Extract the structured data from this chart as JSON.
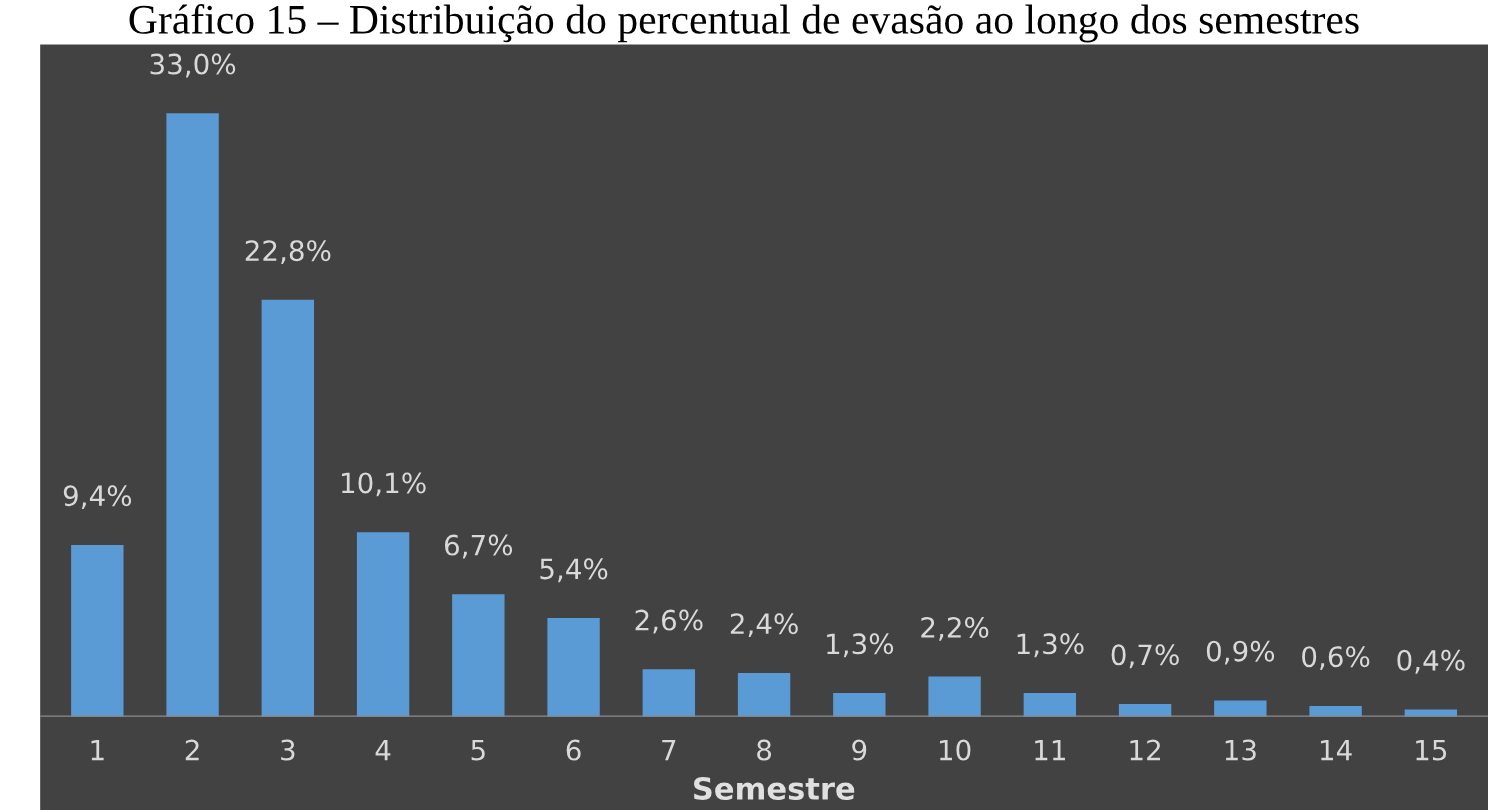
{
  "chart_data": {
    "type": "bar",
    "title": "Gráfico 15 – Distribuição do percentual de evasão ao longo dos semestres",
    "xlabel": "Semestre",
    "categories": [
      "1",
      "2",
      "3",
      "4",
      "5",
      "6",
      "7",
      "8",
      "9",
      "10",
      "11",
      "12",
      "13",
      "14",
      "15"
    ],
    "values": [
      9.4,
      33.0,
      22.8,
      10.1,
      6.7,
      5.4,
      2.6,
      2.4,
      1.3,
      2.2,
      1.3,
      0.7,
      0.9,
      0.6,
      0.4
    ],
    "value_labels": [
      "9,4%",
      "33,0%",
      "22,8%",
      "10,1%",
      "6,7%",
      "5,4%",
      "2,6%",
      "2,4%",
      "1,3%",
      "2,2%",
      "1,3%",
      "0,7%",
      "0,9%",
      "0,6%",
      "0,4%"
    ],
    "color": "#5b9bd5"
  }
}
